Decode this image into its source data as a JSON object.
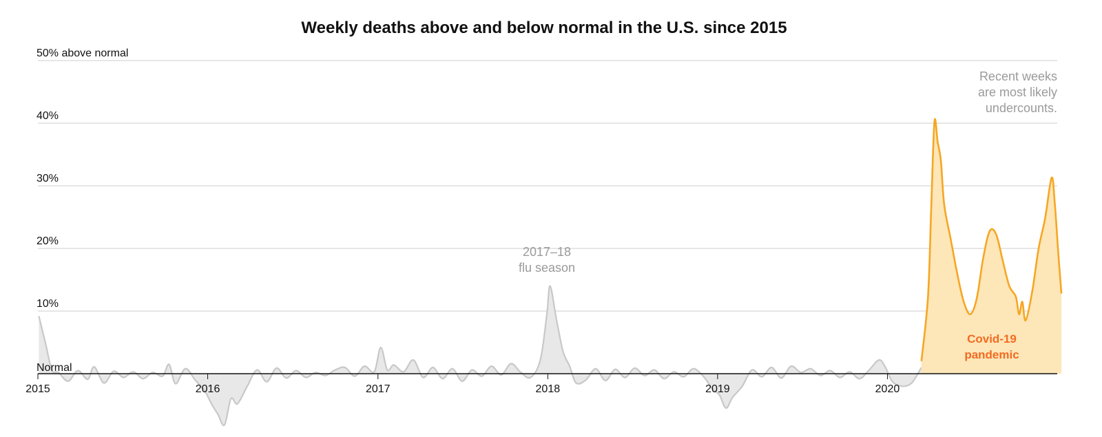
{
  "chart_data": {
    "type": "area",
    "title": "Weekly deaths above and below normal in the U.S. since 2015",
    "y_unit": "percent above normal",
    "ylim": [
      -10,
      50
    ],
    "xlim": [
      "2015-01-01",
      "2020-12-31"
    ],
    "y_ticks": [
      {
        "value": 0,
        "label": "Normal"
      },
      {
        "value": 10,
        "label": "10%"
      },
      {
        "value": 20,
        "label": "20%"
      },
      {
        "value": 30,
        "label": "30%"
      },
      {
        "value": 40,
        "label": "40%"
      },
      {
        "value": 50,
        "label": "50% above normal"
      }
    ],
    "x_ticks": [
      {
        "date": "2015-01-01",
        "label": "2015"
      },
      {
        "date": "2016-01-01",
        "label": "2016"
      },
      {
        "date": "2017-01-01",
        "label": "2017"
      },
      {
        "date": "2018-01-01",
        "label": "2018"
      },
      {
        "date": "2019-01-01",
        "label": "2019"
      },
      {
        "date": "2020-01-01",
        "label": "2020"
      }
    ],
    "grid": true,
    "legend": "none",
    "colors": {
      "baseline_line": "#c8c8c8",
      "baseline_fill": "#e8e8e8",
      "covid_line": "#f6a623",
      "covid_fill": "#fde6b8",
      "covid_label": "#f26b21",
      "note_gray": "#9a9a9a",
      "gridline": "#cccccc",
      "axis": "#111111"
    },
    "series": [
      {
        "key": "baseline",
        "points": [
          [
            "2015-01-03",
            9.2
          ],
          [
            "2015-01-17",
            5.0
          ],
          [
            "2015-01-31",
            0.6
          ],
          [
            "2015-02-14",
            0.2
          ],
          [
            "2015-03-07",
            -1.2
          ],
          [
            "2015-03-28",
            0.5
          ],
          [
            "2015-04-18",
            -0.9
          ],
          [
            "2015-05-02",
            1.1
          ],
          [
            "2015-05-23",
            -1.5
          ],
          [
            "2015-06-13",
            0.4
          ],
          [
            "2015-07-04",
            -0.6
          ],
          [
            "2015-07-25",
            0.3
          ],
          [
            "2015-08-15",
            -0.8
          ],
          [
            "2015-09-05",
            0.2
          ],
          [
            "2015-09-26",
            -0.4
          ],
          [
            "2015-10-10",
            1.5
          ],
          [
            "2015-10-24",
            -1.6
          ],
          [
            "2015-11-14",
            0.8
          ],
          [
            "2015-12-05",
            -1.0
          ],
          [
            "2015-12-26",
            -2.8
          ],
          [
            "2016-01-09",
            -4.8
          ],
          [
            "2016-01-23",
            -6.5
          ],
          [
            "2016-02-06",
            -8.2
          ],
          [
            "2016-02-20",
            -4.0
          ],
          [
            "2016-03-05",
            -4.8
          ],
          [
            "2016-03-26",
            -2.0
          ],
          [
            "2016-04-16",
            0.6
          ],
          [
            "2016-05-07",
            -1.3
          ],
          [
            "2016-05-28",
            0.9
          ],
          [
            "2016-06-18",
            -0.7
          ],
          [
            "2016-07-09",
            0.5
          ],
          [
            "2016-07-30",
            -0.6
          ],
          [
            "2016-08-20",
            0.2
          ],
          [
            "2016-09-10",
            -0.3
          ],
          [
            "2016-10-01",
            0.6
          ],
          [
            "2016-10-22",
            1.0
          ],
          [
            "2016-11-12",
            -0.4
          ],
          [
            "2016-12-03",
            1.2
          ],
          [
            "2016-12-24",
            0.3
          ],
          [
            "2017-01-07",
            4.2
          ],
          [
            "2017-01-21",
            0.6
          ],
          [
            "2017-02-04",
            1.4
          ],
          [
            "2017-02-25",
            0.3
          ],
          [
            "2017-03-18",
            2.2
          ],
          [
            "2017-04-08",
            -0.6
          ],
          [
            "2017-04-29",
            1.0
          ],
          [
            "2017-05-20",
            -0.8
          ],
          [
            "2017-06-10",
            0.8
          ],
          [
            "2017-07-01",
            -1.2
          ],
          [
            "2017-07-22",
            0.6
          ],
          [
            "2017-08-12",
            -0.4
          ],
          [
            "2017-09-02",
            1.2
          ],
          [
            "2017-09-23",
            -0.2
          ],
          [
            "2017-10-14",
            1.6
          ],
          [
            "2017-11-04",
            0.2
          ],
          [
            "2017-11-25",
            -0.6
          ],
          [
            "2017-12-16",
            2.2
          ],
          [
            "2017-12-30",
            9.5
          ],
          [
            "2018-01-06",
            14.0
          ],
          [
            "2018-01-20",
            8.5
          ],
          [
            "2018-02-03",
            3.5
          ],
          [
            "2018-02-17",
            1.2
          ],
          [
            "2018-03-03",
            -1.5
          ],
          [
            "2018-03-24",
            -1.0
          ],
          [
            "2018-04-14",
            0.8
          ],
          [
            "2018-05-05",
            -1.1
          ],
          [
            "2018-05-26",
            0.7
          ],
          [
            "2018-06-16",
            -0.6
          ],
          [
            "2018-07-07",
            0.9
          ],
          [
            "2018-07-28",
            -0.3
          ],
          [
            "2018-08-18",
            0.6
          ],
          [
            "2018-09-08",
            -0.8
          ],
          [
            "2018-09-29",
            0.3
          ],
          [
            "2018-10-20",
            -0.5
          ],
          [
            "2018-11-10",
            0.8
          ],
          [
            "2018-12-01",
            -0.4
          ],
          [
            "2018-12-22",
            -2.5
          ],
          [
            "2019-01-05",
            -3.4
          ],
          [
            "2019-01-19",
            -5.5
          ],
          [
            "2019-02-02",
            -3.8
          ],
          [
            "2019-02-23",
            -2.0
          ],
          [
            "2019-03-16",
            0.6
          ],
          [
            "2019-04-06",
            -0.5
          ],
          [
            "2019-04-27",
            1.0
          ],
          [
            "2019-05-18",
            -0.7
          ],
          [
            "2019-06-08",
            1.2
          ],
          [
            "2019-06-29",
            0.2
          ],
          [
            "2019-07-20",
            0.8
          ],
          [
            "2019-08-10",
            -0.3
          ],
          [
            "2019-08-31",
            0.5
          ],
          [
            "2019-09-21",
            -0.6
          ],
          [
            "2019-10-12",
            0.3
          ],
          [
            "2019-11-02",
            -0.8
          ],
          [
            "2019-11-23",
            0.6
          ],
          [
            "2019-12-14",
            2.2
          ],
          [
            "2019-12-28",
            1.0
          ],
          [
            "2020-01-11",
            -1.2
          ],
          [
            "2020-02-01",
            -2.0
          ],
          [
            "2020-02-22",
            -1.5
          ],
          [
            "2020-03-14",
            1.0
          ]
        ]
      },
      {
        "key": "covid",
        "points": [
          [
            "2020-03-14",
            2.0
          ],
          [
            "2020-03-28",
            12.0
          ],
          [
            "2020-04-04",
            26.0
          ],
          [
            "2020-04-11",
            40.2
          ],
          [
            "2020-04-18",
            37.0
          ],
          [
            "2020-04-25",
            34.0
          ],
          [
            "2020-05-02",
            27.0
          ],
          [
            "2020-05-16",
            21.5
          ],
          [
            "2020-05-30",
            16.0
          ],
          [
            "2020-06-13",
            11.5
          ],
          [
            "2020-06-27",
            9.5
          ],
          [
            "2020-07-11",
            12.0
          ],
          [
            "2020-07-25",
            18.5
          ],
          [
            "2020-08-08",
            22.8
          ],
          [
            "2020-08-22",
            22.2
          ],
          [
            "2020-09-05",
            18.0
          ],
          [
            "2020-09-19",
            14.0
          ],
          [
            "2020-10-03",
            12.3
          ],
          [
            "2020-10-10",
            9.5
          ],
          [
            "2020-10-17",
            11.5
          ],
          [
            "2020-10-24",
            8.5
          ],
          [
            "2020-11-07",
            13.0
          ],
          [
            "2020-11-21",
            20.0
          ],
          [
            "2020-12-05",
            24.8
          ],
          [
            "2020-12-19",
            31.3
          ],
          [
            "2020-12-26",
            27.0
          ],
          [
            "2021-01-02",
            19.5
          ],
          [
            "2021-01-09",
            12.8
          ]
        ]
      }
    ],
    "annotations": [
      {
        "key": "flu",
        "lines": [
          "2017–18",
          "flu season"
        ]
      },
      {
        "key": "recent",
        "lines": [
          "Recent weeks",
          "are most likely",
          "undercounts."
        ]
      },
      {
        "key": "covid",
        "lines": [
          "Covid-19",
          "pandemic"
        ]
      }
    ]
  }
}
